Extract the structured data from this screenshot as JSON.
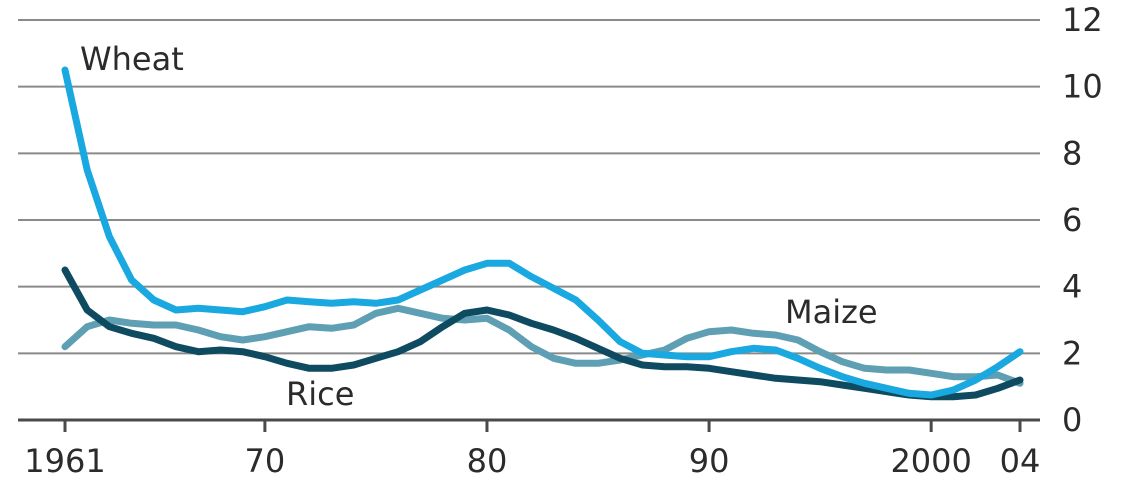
{
  "chart_data": {
    "type": "line",
    "title": "",
    "xlabel": "",
    "ylabel": "",
    "xlim": [
      1961,
      2005
    ],
    "ylim": [
      0,
      12
    ],
    "y_axis_side": "right",
    "grid": true,
    "legend": "inline labels",
    "x_ticks": [
      1961,
      1970,
      1980,
      1990,
      2000,
      2004
    ],
    "x_tick_labels": [
      "1961",
      "70",
      "80",
      "90",
      "2000",
      "04"
    ],
    "y_ticks": [
      0,
      2,
      4,
      6,
      8,
      10,
      12
    ],
    "y_tick_labels": [
      "0",
      "2",
      "4",
      "6",
      "8",
      "10",
      "12"
    ],
    "series": [
      {
        "name": "Wheat",
        "color": "#19a8e0",
        "x": [
          1961,
          1962,
          1963,
          1964,
          1965,
          1966,
          1967,
          1968,
          1969,
          1970,
          1971,
          1972,
          1973,
          1974,
          1975,
          1976,
          1977,
          1978,
          1979,
          1980,
          1981,
          1982,
          1983,
          1984,
          1985,
          1986,
          1987,
          1988,
          1989,
          1990,
          1991,
          1992,
          1993,
          1994,
          1995,
          1996,
          1997,
          1998,
          1999,
          2000,
          2001,
          2002,
          2003,
          2004
        ],
        "y": [
          10.5,
          7.5,
          5.5,
          4.2,
          3.6,
          3.3,
          3.35,
          3.3,
          3.25,
          3.4,
          3.6,
          3.55,
          3.5,
          3.55,
          3.5,
          3.6,
          3.9,
          4.2,
          4.5,
          4.7,
          4.7,
          4.3,
          3.95,
          3.6,
          3.0,
          2.35,
          2.0,
          1.95,
          1.9,
          1.9,
          2.05,
          2.15,
          2.1,
          1.85,
          1.55,
          1.3,
          1.1,
          0.95,
          0.8,
          0.75,
          0.9,
          1.2,
          1.6,
          2.05
        ]
      },
      {
        "name": "Maize",
        "color": "#5f9fb3",
        "x": [
          1961,
          1962,
          1963,
          1964,
          1965,
          1966,
          1967,
          1968,
          1969,
          1970,
          1971,
          1972,
          1973,
          1974,
          1975,
          1976,
          1977,
          1978,
          1979,
          1980,
          1981,
          1982,
          1983,
          1984,
          1985,
          1986,
          1987,
          1988,
          1989,
          1990,
          1991,
          1992,
          1993,
          1994,
          1995,
          1996,
          1997,
          1998,
          1999,
          2000,
          2001,
          2002,
          2003,
          2004
        ],
        "y": [
          2.2,
          2.8,
          3.0,
          2.9,
          2.85,
          2.85,
          2.7,
          2.5,
          2.4,
          2.5,
          2.65,
          2.8,
          2.75,
          2.85,
          3.2,
          3.35,
          3.2,
          3.05,
          3.0,
          3.05,
          2.7,
          2.2,
          1.85,
          1.7,
          1.7,
          1.8,
          1.95,
          2.1,
          2.45,
          2.65,
          2.7,
          2.6,
          2.55,
          2.4,
          2.05,
          1.75,
          1.55,
          1.5,
          1.5,
          1.4,
          1.3,
          1.3,
          1.35,
          1.1
        ]
      },
      {
        "name": "Rice",
        "color": "#0e4a60",
        "x": [
          1961,
          1962,
          1963,
          1964,
          1965,
          1966,
          1967,
          1968,
          1969,
          1970,
          1971,
          1972,
          1973,
          1974,
          1975,
          1976,
          1977,
          1978,
          1979,
          1980,
          1981,
          1982,
          1983,
          1984,
          1985,
          1986,
          1987,
          1988,
          1989,
          1990,
          1991,
          1992,
          1993,
          1994,
          1995,
          1996,
          1997,
          1998,
          1999,
          2000,
          2001,
          2002,
          2003,
          2004
        ],
        "y": [
          4.5,
          3.3,
          2.8,
          2.6,
          2.45,
          2.2,
          2.05,
          2.1,
          2.05,
          1.9,
          1.7,
          1.55,
          1.55,
          1.65,
          1.85,
          2.05,
          2.35,
          2.8,
          3.2,
          3.3,
          3.15,
          2.9,
          2.7,
          2.45,
          2.15,
          1.85,
          1.65,
          1.6,
          1.6,
          1.55,
          1.45,
          1.35,
          1.25,
          1.2,
          1.15,
          1.05,
          0.95,
          0.85,
          0.75,
          0.7,
          0.7,
          0.75,
          0.95,
          1.2
        ]
      }
    ],
    "annotations": [
      "Wheat",
      "Maize",
      "Rice"
    ]
  }
}
